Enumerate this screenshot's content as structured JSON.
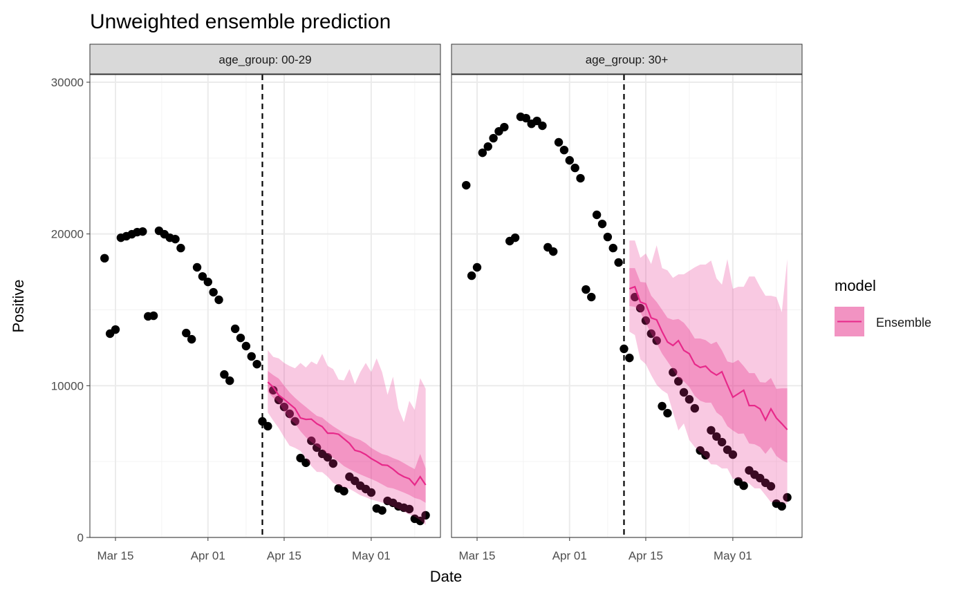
{
  "chart_data": {
    "type": "scatter",
    "title": "Unweighted ensemble prediction",
    "xlabel": "Date",
    "ylabel": "Positive",
    "ylim": [
      0,
      30500
    ],
    "xlim": [
      "Mar 10",
      "May 14"
    ],
    "grid": true,
    "x_ticks": [
      "Mar 15",
      "Apr 01",
      "Apr 15",
      "May 01"
    ],
    "y_ticks": [
      0,
      10000,
      20000,
      30000
    ],
    "y_tick_labels": [
      "0",
      "10000",
      "20000",
      "30000"
    ],
    "forecast_date": "Apr 11",
    "legend": {
      "title": "model",
      "entries": [
        "Ensemble"
      ],
      "placement": "right"
    },
    "colors": {
      "ensemble_line": "#e7298a",
      "ensemble_fill": "#e7298a",
      "points": "#000000",
      "strip": "#d9d9d9",
      "grid": "#ebebeb"
    },
    "observed_dates": [
      "Mar 13",
      "Mar 14",
      "Mar 15",
      "Mar 16",
      "Mar 17",
      "Mar 18",
      "Mar 19",
      "Mar 20",
      "Mar 21",
      "Mar 22",
      "Mar 23",
      "Mar 24",
      "Mar 25",
      "Mar 26",
      "Mar 27",
      "Mar 28",
      "Mar 29",
      "Mar 30",
      "Mar 31",
      "Apr 1",
      "Apr 2",
      "Apr 3",
      "Apr 4",
      "Apr 5",
      "Apr 6",
      "Apr 7",
      "Apr 8",
      "Apr 9",
      "Apr 10",
      "Apr 11",
      "Apr 12",
      "Apr 13",
      "Apr 14",
      "Apr 15",
      "Apr 16",
      "Apr 17",
      "Apr 18",
      "Apr 19",
      "Apr 20",
      "Apr 21",
      "Apr 22",
      "Apr 23",
      "Apr 24",
      "Apr 25",
      "Apr 26",
      "Apr 27",
      "Apr 28",
      "Apr 29",
      "Apr 30",
      "May 1",
      "May 2",
      "May 3",
      "May 4",
      "May 5",
      "May 6",
      "May 7",
      "May 8",
      "May 9",
      "May 10",
      "May 11"
    ],
    "forecast_dates": [
      "Apr 12",
      "Apr 13",
      "Apr 14",
      "Apr 15",
      "Apr 16",
      "Apr 17",
      "Apr 18",
      "Apr 19",
      "Apr 20",
      "Apr 21",
      "Apr 22",
      "Apr 23",
      "Apr 24",
      "Apr 25",
      "Apr 26",
      "Apr 27",
      "Apr 28",
      "Apr 29",
      "Apr 30",
      "May 1",
      "May 2",
      "May 3",
      "May 4",
      "May 5",
      "May 6",
      "May 7",
      "May 8",
      "May 9",
      "May 10",
      "May 11"
    ],
    "panels": [
      {
        "strip": "age_group: 00-29",
        "observed": [
          18400,
          13430,
          13700,
          19750,
          19850,
          19980,
          20120,
          20160,
          14570,
          14610,
          20210,
          19980,
          19750,
          19660,
          19070,
          13470,
          13060,
          17800,
          17200,
          16840,
          16160,
          15660,
          10740,
          10330,
          13750,
          13150,
          12610,
          11930,
          11420,
          7650,
          7330,
          9700,
          9060,
          8600,
          8150,
          7650,
          5230,
          4920,
          6370,
          5920,
          5510,
          5280,
          4870,
          3230,
          3050,
          4000,
          3730,
          3410,
          3190,
          2960,
          1910,
          1780,
          2410,
          2280,
          2050,
          1960,
          1870,
          1230,
          1090,
          1460
        ],
        "median": [
          10240,
          9900,
          9380,
          9100,
          8800,
          8500,
          7870,
          7780,
          7800,
          7500,
          7300,
          6870,
          6870,
          6800,
          6500,
          6200,
          5740,
          5650,
          5460,
          5200,
          5000,
          4780,
          4750,
          4500,
          4200,
          4000,
          3870,
          3460,
          4000,
          3460
        ],
        "inner_upper": [
          10970,
          10700,
          10470,
          10000,
          9560,
          9200,
          8880,
          8600,
          8300,
          8010,
          7900,
          7600,
          7330,
          7100,
          6870,
          6700,
          6550,
          6420,
          6200,
          5900,
          5690,
          5500,
          5400,
          5230,
          5100,
          4900,
          4690,
          4500,
          5510,
          4550
        ],
        "inner_lower": [
          9600,
          9200,
          8880,
          8300,
          7800,
          7510,
          7000,
          6600,
          6280,
          6000,
          5800,
          5510,
          5250,
          5000,
          4700,
          4500,
          4320,
          4150,
          4000,
          3850,
          3690,
          3500,
          3300,
          3230,
          3100,
          2960,
          2800,
          2600,
          2500,
          2280
        ],
        "outer_upper": [
          12340,
          11900,
          11800,
          11500,
          11300,
          11150,
          11500,
          11200,
          11600,
          11400,
          12100,
          11300,
          11100,
          10400,
          10350,
          11100,
          10100,
          10900,
          11500,
          10900,
          11800,
          10900,
          9400,
          10600,
          8500,
          7600,
          9000,
          8400,
          10500,
          9800
        ],
        "outer_lower": [
          8240,
          7700,
          7200,
          6600,
          6050,
          5900,
          5700,
          5200,
          4700,
          4320,
          4300,
          4000,
          3600,
          3410,
          3300,
          3200,
          3000,
          2780,
          2650,
          2500,
          2400,
          2300,
          2180,
          2050,
          1870,
          1700,
          1500,
          1370,
          1140,
          820
        ]
      },
      {
        "strip": "age_group: 30+",
        "observed": [
          23210,
          17250,
          17800,
          25350,
          25760,
          26310,
          26760,
          27040,
          19530,
          19750,
          27720,
          27630,
          27260,
          27450,
          27130,
          19120,
          18840,
          26040,
          25530,
          24850,
          24350,
          23670,
          16340,
          15840,
          21260,
          20660,
          19800,
          19070,
          18120,
          12430,
          11830,
          15840,
          15110,
          14290,
          13430,
          12970,
          8650,
          8190,
          10880,
          10290,
          9560,
          9100,
          8510,
          5730,
          5420,
          7060,
          6650,
          6280,
          5780,
          5460,
          3690,
          3410,
          4420,
          4140,
          3910,
          3600,
          3370,
          2230,
          2050,
          2640
        ],
        "median": [
          16390,
          16520,
          15520,
          15380,
          14470,
          14340,
          13560,
          12880,
          12650,
          12970,
          12330,
          12110,
          11420,
          11200,
          11290,
          10920,
          10700,
          10920,
          10060,
          9240,
          9470,
          9700,
          8690,
          8690,
          8470,
          7740,
          8470,
          7870,
          7500,
          7100
        ],
        "inner_upper": [
          17750,
          17750,
          16840,
          16800,
          15930,
          15520,
          15000,
          14470,
          14340,
          14400,
          14150,
          13700,
          13110,
          13110,
          13000,
          12740,
          12900,
          12330,
          11600,
          11500,
          11700,
          11290,
          10830,
          10830,
          10240,
          10200,
          10510,
          9790,
          9830,
          9830
        ],
        "inner_lower": [
          15250,
          15200,
          14840,
          14150,
          13430,
          12790,
          12110,
          11600,
          11060,
          10510,
          10290,
          9920,
          9330,
          9010,
          8880,
          8880,
          8240,
          7970,
          7330,
          7050,
          6830,
          6850,
          6190,
          6140,
          5960,
          5510,
          5960,
          5370,
          5100,
          4920
        ],
        "outer_upper": [
          19570,
          19570,
          18430,
          18710,
          18020,
          19250,
          17750,
          17600,
          17110,
          17340,
          17340,
          17570,
          17800,
          17980,
          17980,
          18250,
          17070,
          16660,
          18340,
          16390,
          16520,
          16520,
          17200,
          17200,
          16520,
          15930,
          15930,
          15840,
          14840,
          18340
        ],
        "outer_lower": [
          13560,
          13340,
          11740,
          11420,
          10700,
          10060,
          9700,
          9470,
          8240,
          7050,
          7510,
          6420,
          5960,
          5600,
          5280,
          4820,
          4800,
          4550,
          4550,
          3870,
          3870,
          3690,
          3550,
          3230,
          3230,
          2780,
          2320,
          2350,
          2320,
          2180
        ]
      }
    ]
  }
}
